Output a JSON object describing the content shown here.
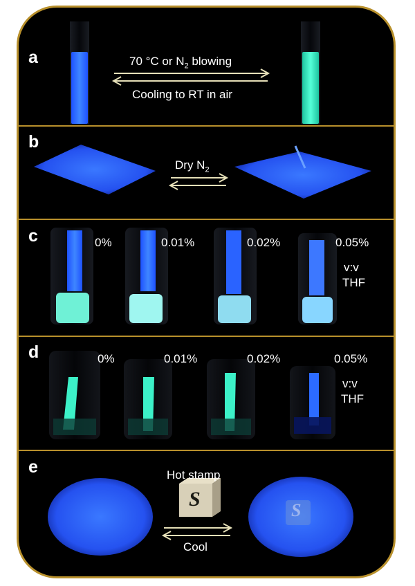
{
  "colors": {
    "frame_border": "#b8902c",
    "background": "#000000",
    "blue_emission": "#2f6bff",
    "cyan_emission": "#39f0c8"
  },
  "panels": {
    "a": {
      "label": "a",
      "top_arrow_text": "70 °C or N",
      "top_arrow_sub": "2",
      "top_arrow_tail": " blowing",
      "bottom_arrow_text": "Cooling to RT in air"
    },
    "b": {
      "label": "b",
      "arrow_text": "Dry N",
      "arrow_sub": "2"
    },
    "c": {
      "label": "c",
      "concentrations": [
        "0%",
        "0.01%",
        "0.02%",
        "0.05%"
      ],
      "ratio_label": "v:v",
      "solvent_label": "THF"
    },
    "d": {
      "label": "d",
      "concentrations": [
        "0%",
        "0.01%",
        "0.02%",
        "0.05%"
      ],
      "ratio_label": "v:v",
      "solvent_label": "THF"
    },
    "e": {
      "label": "e",
      "top_text": "Hot stamp",
      "bottom_text": "Cool",
      "stamp_letter": "S"
    }
  }
}
